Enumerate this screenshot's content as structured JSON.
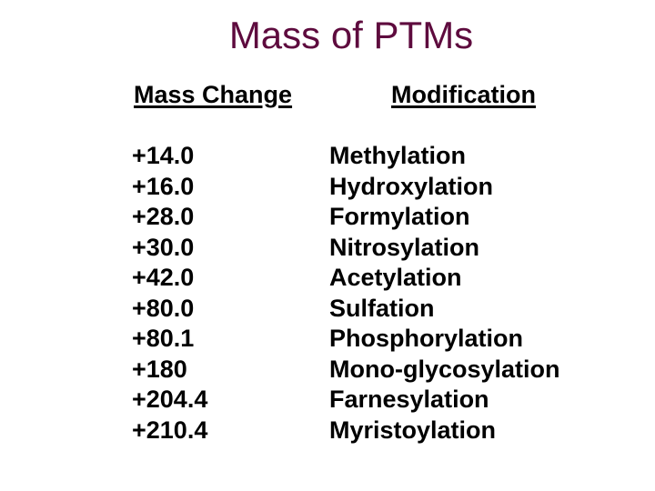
{
  "slide": {
    "title": "Mass of PTMs",
    "colors": {
      "title_text": "#5E0B3E",
      "body_text": "#000000",
      "background": "#FFFFFF"
    },
    "table": {
      "headers": {
        "mass": "Mass Change",
        "modification": "Modification"
      },
      "rows": [
        {
          "mass": "+14.0",
          "modification": "Methylation"
        },
        {
          "mass": "+16.0",
          "modification": "Hydroxylation"
        },
        {
          "mass": "+28.0",
          "modification": "Formylation"
        },
        {
          "mass": "+30.0",
          "modification": "Nitrosylation"
        },
        {
          "mass": "+42.0",
          "modification": "Acetylation"
        },
        {
          "mass": "+80.0",
          "modification": "Sulfation"
        },
        {
          "mass": "+80.1",
          "modification": "Phosphorylation"
        },
        {
          "mass": "+180",
          "modification": "Mono-glycosylation"
        },
        {
          "mass": "+204.4",
          "modification": "Farnesylation"
        },
        {
          "mass": "+210.4",
          "modification": "Myristoylation"
        }
      ]
    }
  }
}
